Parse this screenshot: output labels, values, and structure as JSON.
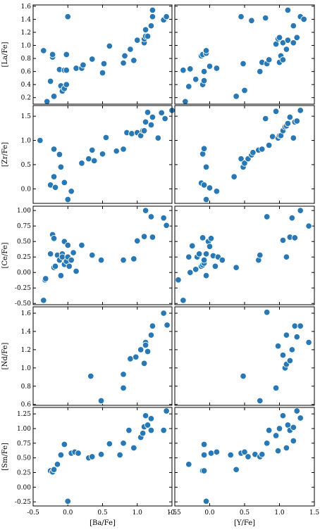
{
  "figure": {
    "background": "#ffffff",
    "marker_color": "#2878b5",
    "marker_edge_color": "#ffffff"
  },
  "chart_data": [
    {
      "type": "scatter",
      "xlabel": "",
      "ylabel": "[La/Fe]",
      "xlim": [
        -0.5,
        1.5
      ],
      "ylim": [
        0.1,
        1.62
      ],
      "xticks": [
        -0.5,
        0.0,
        0.5,
        1.0,
        1.5
      ],
      "yticks": [
        0.2,
        0.4,
        0.6,
        0.8,
        1.0,
        1.2,
        1.4,
        1.6
      ],
      "ytick_labels": [
        "0.2",
        "0.4",
        "0.6",
        "0.8",
        "1.0",
        "1.2",
        "1.4",
        "1.6"
      ],
      "show_xticklabels": false,
      "x": [
        -0.35,
        -0.3,
        -0.25,
        -0.22,
        -0.22,
        -0.2,
        -0.12,
        -0.1,
        -0.08,
        -0.05,
        -0.05,
        -0.02,
        -0.02,
        -0.02,
        0.0,
        0.12,
        0.2,
        0.22,
        0.35,
        0.5,
        0.52,
        0.6,
        0.8,
        0.82,
        0.9,
        0.95,
        1.0,
        1.1,
        1.1,
        1.12,
        1.12,
        1.15,
        1.2,
        1.22,
        1.22,
        1.38,
        1.42
      ],
      "y": [
        0.92,
        0.14,
        0.45,
        0.82,
        0.86,
        0.22,
        0.63,
        0.38,
        0.3,
        0.34,
        0.62,
        0.4,
        0.62,
        0.86,
        1.44,
        0.65,
        0.65,
        0.7,
        0.79,
        0.58,
        0.72,
        0.99,
        0.73,
        0.84,
        0.94,
        0.77,
        1.08,
        1.04,
        1.1,
        1.14,
        1.24,
        1.14,
        1.3,
        1.44,
        1.54,
        1.39,
        1.44
      ]
    },
    {
      "type": "scatter",
      "xlabel": "",
      "ylabel": "",
      "xlim": [
        -0.5,
        1.5
      ],
      "ylim": [
        0.1,
        1.62
      ],
      "xticks": [
        -0.5,
        0.0,
        0.5,
        1.0,
        1.5
      ],
      "yticks": [
        0.2,
        0.4,
        0.6,
        0.8,
        1.0,
        1.2,
        1.4,
        1.6
      ],
      "show_xticklabels": false,
      "show_yticklabels": false,
      "x": [
        -0.38,
        -0.35,
        -0.3,
        -0.28,
        -0.2,
        -0.12,
        -0.1,
        -0.1,
        -0.08,
        -0.08,
        -0.05,
        -0.05,
        0.0,
        0.1,
        0.38,
        0.45,
        0.48,
        0.5,
        0.6,
        0.72,
        0.75,
        0.8,
        0.82,
        0.85,
        0.95,
        0.98,
        1.0,
        1.0,
        1.02,
        1.05,
        1.05,
        1.1,
        1.12,
        1.12,
        1.2,
        1.2,
        1.25,
        1.3,
        1.35
      ],
      "y": [
        0.62,
        0.14,
        0.37,
        0.64,
        0.48,
        0.84,
        0.86,
        0.4,
        0.46,
        0.6,
        0.88,
        0.92,
        0.68,
        0.65,
        0.22,
        1.44,
        0.72,
        0.31,
        1.38,
        0.6,
        0.74,
        1.42,
        0.72,
        0.78,
        1.02,
        1.1,
        0.74,
        1.12,
        0.84,
        1.04,
        0.78,
        0.94,
        1.54,
        1.08,
        1.04,
        1.3,
        1.12,
        1.44,
        1.4
      ]
    },
    {
      "type": "scatter",
      "xlabel": "",
      "ylabel": "[Zr/Fe]",
      "xlim": [
        -0.5,
        1.5
      ],
      "ylim": [
        -0.3,
        1.72
      ],
      "xticks": [
        -0.5,
        0.0,
        0.5,
        1.0,
        1.5
      ],
      "yticks": [
        0.0,
        0.5,
        1.0,
        1.5
      ],
      "ytick_labels": [
        "0.0",
        "0.5",
        "1.0",
        "1.5"
      ],
      "show_xticklabels": false,
      "x": [
        -0.4,
        -0.25,
        -0.2,
        -0.2,
        -0.18,
        -0.12,
        -0.1,
        -0.05,
        0.0,
        0.05,
        0.2,
        0.3,
        0.35,
        0.38,
        0.5,
        0.55,
        0.7,
        0.8,
        0.85,
        0.92,
        1.0,
        1.05,
        1.08,
        1.1,
        1.12,
        1.15,
        1.2,
        1.22,
        1.3,
        1.35,
        1.4,
        1.5
      ],
      "y": [
        1.0,
        0.08,
        0.82,
        0.25,
        0.03,
        0.71,
        0.45,
        0.13,
        -0.22,
        -0.05,
        0.53,
        0.62,
        0.8,
        0.58,
        0.72,
        1.06,
        0.78,
        0.82,
        1.16,
        1.14,
        1.16,
        1.1,
        1.2,
        1.2,
        1.38,
        1.58,
        1.32,
        1.48,
        1.05,
        1.57,
        1.45,
        1.62
      ]
    },
    {
      "type": "scatter",
      "xlabel": "",
      "ylabel": "",
      "xlim": [
        -0.5,
        1.5
      ],
      "ylim": [
        -0.3,
        1.72
      ],
      "xticks": [
        -0.5,
        0.0,
        0.5,
        1.0,
        1.5
      ],
      "yticks": [
        0.0,
        0.5,
        1.0,
        1.5
      ],
      "show_xticklabels": false,
      "show_yticklabels": false,
      "x": [
        -0.12,
        -0.1,
        -0.08,
        -0.08,
        -0.05,
        -0.05,
        0.0,
        0.1,
        0.35,
        0.45,
        0.48,
        0.5,
        0.55,
        0.6,
        0.62,
        0.7,
        0.75,
        0.8,
        0.85,
        0.9,
        0.95,
        0.98,
        1.0,
        1.02,
        1.05,
        1.08,
        1.1,
        1.12,
        1.15,
        1.2,
        1.22,
        1.25,
        1.3
      ],
      "y": [
        0.12,
        0.72,
        0.83,
        0.08,
        0.45,
        -0.22,
        0.02,
        -0.05,
        0.25,
        0.62,
        0.45,
        0.53,
        0.62,
        0.7,
        0.75,
        0.8,
        0.82,
        1.45,
        0.9,
        1.08,
        1.6,
        1.05,
        1.1,
        1.1,
        1.2,
        1.28,
        1.3,
        1.35,
        1.48,
        1.05,
        1.38,
        1.4,
        1.62
      ]
    },
    {
      "type": "scatter",
      "xlabel": "",
      "ylabel": "[Ce/Fe]",
      "xlim": [
        -0.5,
        1.5
      ],
      "ylim": [
        -0.52,
        1.07
      ],
      "xticks": [
        -0.5,
        0.0,
        0.5,
        1.0,
        1.5
      ],
      "yticks": [
        -0.5,
        -0.25,
        0.0,
        0.25,
        0.5,
        0.75,
        1.0
      ],
      "ytick_labels": [
        "-0.50",
        "-0.25",
        "0.00",
        "0.25",
        "0.50",
        "0.75",
        "1.00"
      ],
      "show_xticklabels": false,
      "x": [
        -0.35,
        -0.33,
        -0.32,
        -0.25,
        -0.22,
        -0.2,
        -0.2,
        -0.18,
        -0.15,
        -0.12,
        -0.1,
        -0.08,
        -0.08,
        -0.05,
        -0.05,
        -0.02,
        0.0,
        0.0,
        0.02,
        0.05,
        0.08,
        0.12,
        0.2,
        0.35,
        0.48,
        0.8,
        0.95,
        1.0,
        1.1,
        1.12,
        1.2,
        1.22,
        1.38,
        1.42
      ],
      "y": [
        -0.45,
        -0.12,
        -0.1,
        0.3,
        0.61,
        0.55,
        0.08,
        0.1,
        0.28,
        0.2,
        -0.05,
        0.3,
        0.25,
        0.13,
        0.5,
        0.18,
        0.44,
        0.25,
        0.1,
        0.2,
        0.32,
        0.02,
        0.44,
        0.28,
        0.2,
        0.2,
        0.22,
        0.51,
        0.58,
        1.0,
        0.9,
        0.57,
        0.88,
        0.76
      ]
    },
    {
      "type": "scatter",
      "xlabel": "",
      "ylabel": "",
      "xlim": [
        -0.5,
        1.5
      ],
      "ylim": [
        -0.52,
        1.07
      ],
      "xticks": [
        -0.5,
        0.0,
        0.5,
        1.0,
        1.5
      ],
      "yticks": [
        -0.5,
        -0.25,
        0.0,
        0.25,
        0.5,
        0.75,
        1.0
      ],
      "show_xticklabels": false,
      "show_yticklabels": false,
      "x": [
        -0.45,
        -0.38,
        -0.3,
        -0.28,
        -0.25,
        -0.2,
        -0.18,
        -0.15,
        -0.12,
        -0.1,
        -0.1,
        -0.08,
        -0.08,
        -0.05,
        -0.05,
        -0.02,
        0.0,
        0.02,
        0.05,
        0.08,
        0.12,
        0.18,
        0.38,
        0.7,
        0.72,
        0.82,
        1.05,
        1.1,
        1.15,
        1.18,
        1.22,
        1.3,
        1.42
      ],
      "y": [
        -0.12,
        -0.45,
        0.25,
        0.0,
        0.43,
        0.05,
        0.25,
        0.3,
        0.1,
        0.12,
        0.56,
        0.15,
        0.2,
        -0.05,
        0.3,
        0.5,
        0.42,
        0.55,
        0.27,
        0.1,
        0.25,
        0.2,
        0.08,
        0.2,
        0.28,
        0.9,
        0.52,
        0.25,
        0.57,
        0.88,
        0.56,
        1.0,
        0.75
      ]
    },
    {
      "type": "scatter",
      "xlabel": "",
      "ylabel": "[Nd/Fe]",
      "xlim": [
        -0.5,
        1.5
      ],
      "ylim": [
        0.59,
        1.67
      ],
      "xticks": [
        -0.5,
        0.0,
        0.5,
        1.0,
        1.5
      ],
      "yticks": [
        0.6,
        0.8,
        1.0,
        1.2,
        1.4,
        1.6
      ],
      "ytick_labels": [
        "0.6",
        "0.8",
        "1.0",
        "1.2",
        "1.4",
        "1.6"
      ],
      "show_xticklabels": false,
      "x": [
        0.33,
        0.48,
        0.8,
        0.8,
        0.9,
        0.98,
        1.05,
        1.1,
        1.12,
        1.12,
        1.15,
        1.2,
        1.22,
        1.38,
        1.43
      ],
      "y": [
        0.91,
        0.64,
        0.78,
        0.93,
        1.1,
        1.12,
        1.2,
        1.05,
        1.28,
        1.25,
        1.18,
        1.36,
        1.46,
        1.6,
        1.47
      ]
    },
    {
      "type": "scatter",
      "xlabel": "",
      "ylabel": "",
      "xlim": [
        -0.5,
        1.5
      ],
      "ylim": [
        0.59,
        1.67
      ],
      "xticks": [
        -0.5,
        0.0,
        0.5,
        1.0,
        1.5
      ],
      "yticks": [
        0.6,
        0.8,
        1.0,
        1.2,
        1.4,
        1.6
      ],
      "show_xticklabels": false,
      "show_yticklabels": false,
      "x": [
        0.48,
        0.72,
        0.82,
        0.95,
        0.98,
        1.05,
        1.08,
        1.1,
        1.1,
        1.15,
        1.18,
        1.22,
        1.25,
        1.3,
        1.42
      ],
      "y": [
        0.91,
        0.64,
        1.61,
        0.78,
        1.24,
        1.14,
        1.0,
        1.04,
        1.36,
        1.08,
        1.2,
        1.46,
        1.34,
        1.46,
        1.28
      ]
    },
    {
      "type": "scatter",
      "xlabel": "[Ba/Fe]",
      "ylabel": "[Sm/Fe]",
      "xlim": [
        -0.5,
        1.5
      ],
      "ylim": [
        -0.32,
        1.36
      ],
      "xticks": [
        -0.5,
        0.0,
        0.5,
        1.0,
        1.5
      ],
      "xtick_labels": [
        "-0.5",
        "0.0",
        "0.5",
        "1.0",
        "1.5"
      ],
      "yticks": [
        -0.25,
        0.0,
        0.25,
        0.5,
        0.75,
        1.0,
        1.25
      ],
      "ytick_labels": [
        "-0.25",
        "0.00",
        "0.25",
        "0.50",
        "0.75",
        "1.00",
        "1.25"
      ],
      "x": [
        -0.25,
        -0.22,
        -0.2,
        -0.15,
        -0.1,
        -0.05,
        0.0,
        0.05,
        0.1,
        0.15,
        0.3,
        0.35,
        0.48,
        0.6,
        0.75,
        0.8,
        0.88,
        0.95,
        1.05,
        1.08,
        1.1,
        1.12,
        1.15,
        1.2,
        1.2,
        1.38,
        1.42
      ],
      "y": [
        0.28,
        0.26,
        0.3,
        0.39,
        0.55,
        0.73,
        -0.24,
        0.58,
        0.6,
        0.58,
        0.5,
        0.52,
        0.56,
        0.74,
        0.55,
        0.75,
        0.97,
        0.67,
        0.85,
        0.92,
        1.03,
        1.22,
        1.06,
        1.17,
        0.97,
        0.97,
        1.3
      ]
    },
    {
      "type": "scatter",
      "xlabel": "[Y/Fe]",
      "ylabel": "",
      "xlim": [
        -0.5,
        1.5
      ],
      "ylim": [
        -0.32,
        1.36
      ],
      "xticks": [
        -0.5,
        0.0,
        0.5,
        1.0,
        1.5
      ],
      "xtick_labels": [
        "-0.5",
        "0.0",
        "0.5",
        "1.0",
        "1.5"
      ],
      "yticks": [
        -0.25,
        0.0,
        0.25,
        0.5,
        0.75,
        1.0,
        1.25
      ],
      "show_yticklabels": false,
      "x": [
        -0.3,
        -0.1,
        -0.08,
        -0.08,
        -0.08,
        -0.05,
        0.02,
        0.1,
        0.3,
        0.38,
        0.45,
        0.5,
        0.55,
        0.65,
        0.72,
        0.75,
        0.82,
        0.85,
        0.95,
        0.98,
        1.0,
        1.05,
        1.1,
        1.12,
        1.15,
        1.2,
        1.2,
        1.25,
        1.3
      ],
      "y": [
        0.39,
        0.28,
        0.55,
        0.73,
        0.28,
        -0.24,
        0.58,
        0.6,
        0.55,
        0.3,
        0.58,
        0.6,
        0.52,
        0.56,
        0.52,
        0.56,
        0.75,
        0.97,
        0.88,
        0.62,
        1.0,
        1.22,
        0.67,
        1.06,
        0.97,
        0.79,
        1.02,
        1.3,
        1.18
      ]
    }
  ]
}
